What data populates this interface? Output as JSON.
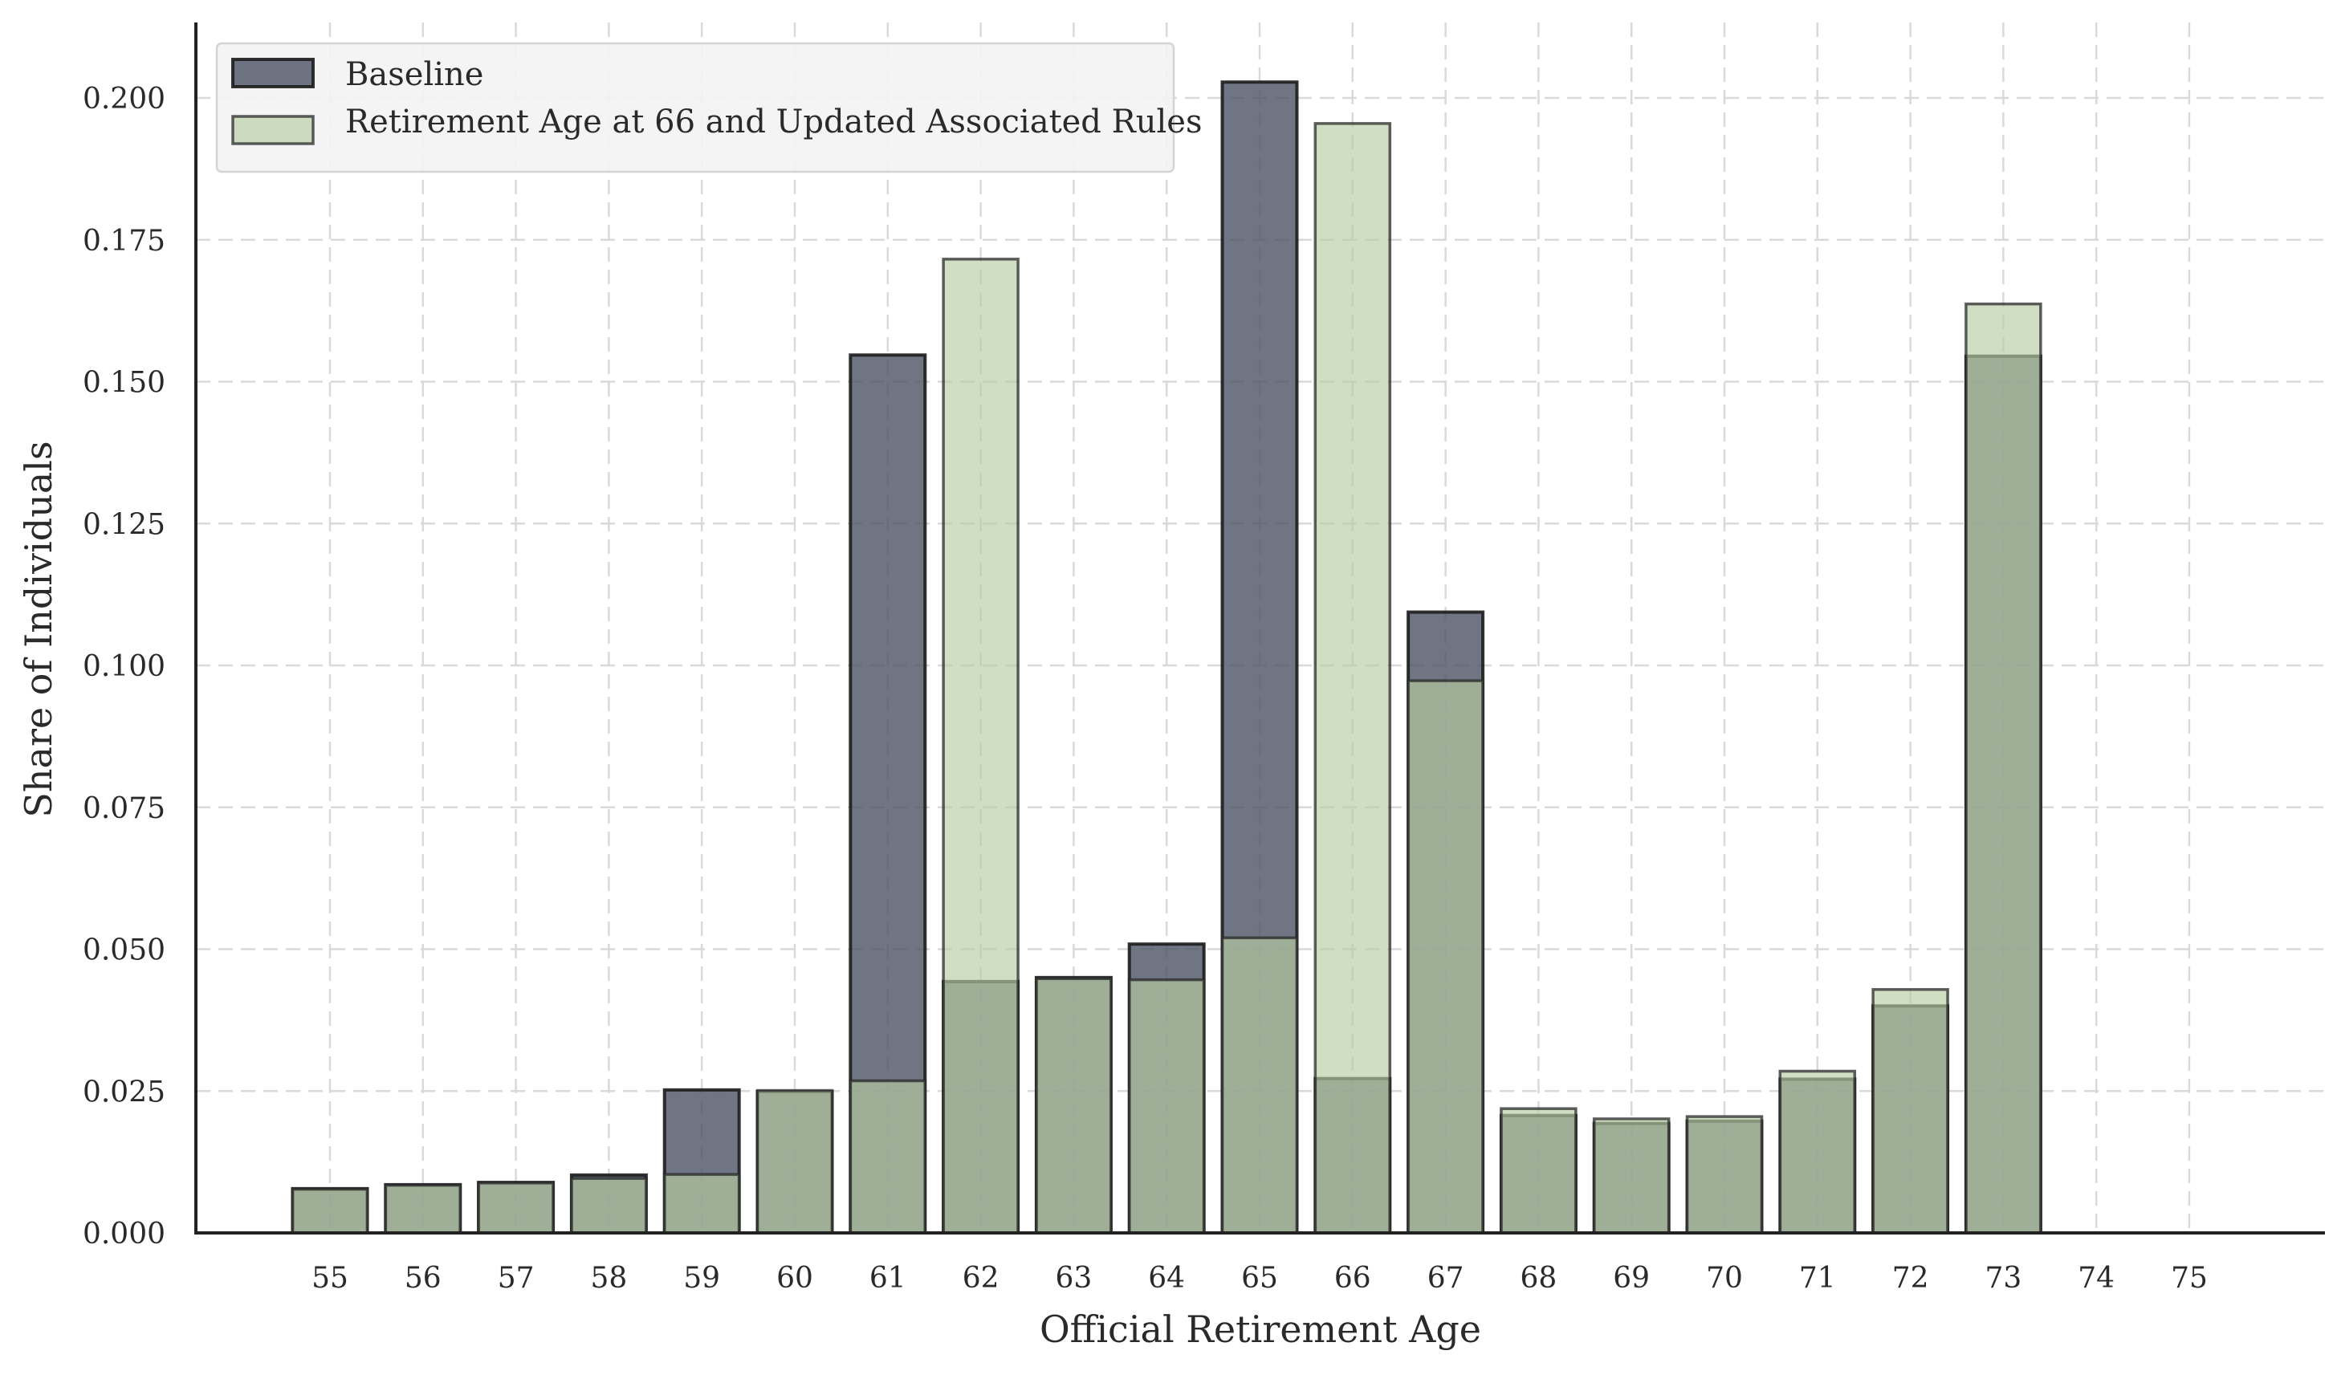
{
  "chart_data": {
    "type": "bar",
    "xlabel": "Official Retirement Age",
    "ylabel": "Share of Individuals",
    "categories": [
      "55",
      "56",
      "57",
      "58",
      "59",
      "60",
      "61",
      "62",
      "63",
      "64",
      "65",
      "66",
      "67",
      "68",
      "69",
      "70",
      "71",
      "72",
      "73",
      "74",
      "75"
    ],
    "ylim": [
      0,
      0.2133
    ],
    "yticks": [
      "0.000",
      "0.025",
      "0.050",
      "0.075",
      "0.100",
      "0.125",
      "0.150",
      "0.175",
      "0.200"
    ],
    "grid": true,
    "legend_position": "top-left",
    "series": [
      {
        "name": "Baseline",
        "color": "#4b5263",
        "values": [
          0.0078,
          0.0085,
          0.0089,
          0.0102,
          0.0252,
          0.0249,
          0.1547,
          0.0443,
          0.045,
          0.0509,
          0.2028,
          0.0272,
          0.1094,
          0.0207,
          0.0193,
          0.0197,
          0.0271,
          0.04,
          0.1545,
          0.0,
          0.0
        ]
      },
      {
        "name": "Retirement Age at 66 and Updated Associated Rules",
        "color": "#b7cca3",
        "values": [
          0.0077,
          0.0084,
          0.0088,
          0.0096,
          0.0103,
          0.0251,
          0.0268,
          0.1716,
          0.0448,
          0.0446,
          0.052,
          0.1955,
          0.0973,
          0.0219,
          0.0201,
          0.0205,
          0.0285,
          0.0429,
          0.1637,
          0.0,
          0.0
        ]
      }
    ]
  }
}
